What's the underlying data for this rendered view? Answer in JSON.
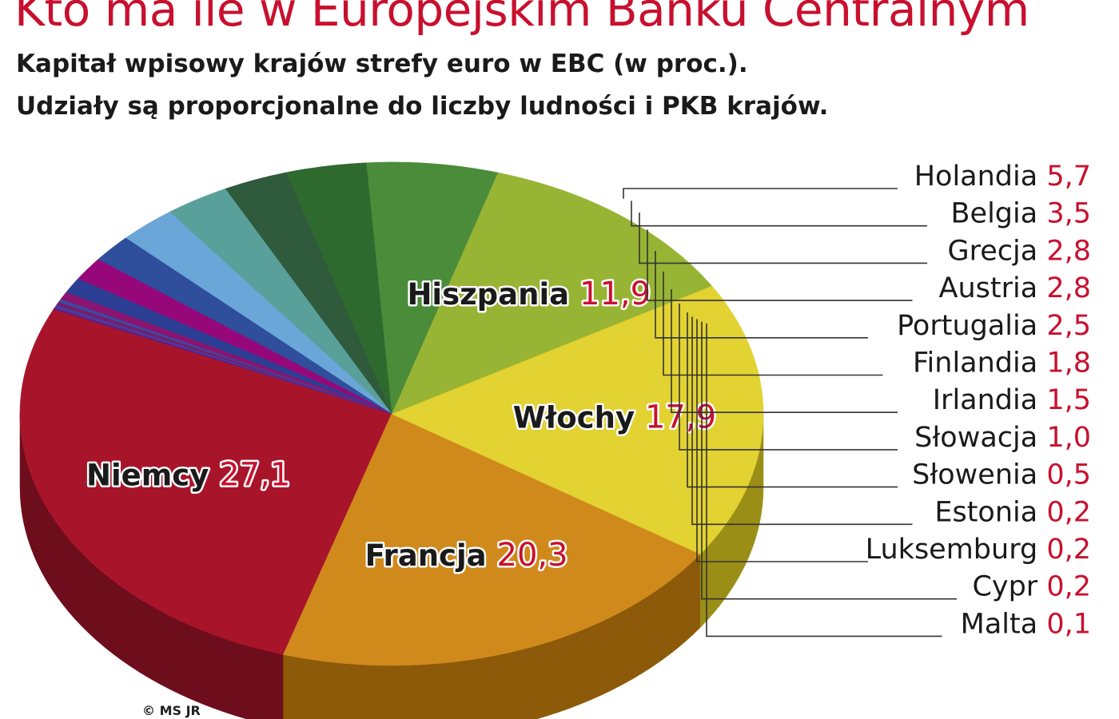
{
  "header": {
    "title": "Kto ma ile w Europejskim Banku Centralnym",
    "subtitle_line1": "Kapitał wpisowy krajów strefy euro w EBC (w proc.).",
    "subtitle_line2": "Udziały są proporcjonalne do liczby ludności i PKB krajów."
  },
  "credit": "© MS JR",
  "colors": {
    "value_text": "#c8102e",
    "label_text": "#1a1a1a"
  },
  "chart_data": {
    "type": "pie",
    "title": "Kto ma ile w Europejskim Banku Centralnym",
    "subtitle": "Kapitał wpisowy krajów strefy euro w EBC (w proc.). Udziały są proporcjonalne do liczby ludności i PKB krajów.",
    "style": "3d-exploded-pie",
    "slices": [
      {
        "label": "Niemcy",
        "value": 27.1,
        "value_text": "27,1",
        "color": "#a8152b",
        "side_color": "#6e0d1c",
        "placement": "inside"
      },
      {
        "label": "Francja",
        "value": 20.3,
        "value_text": "20,3",
        "color": "#d08a1c",
        "side_color": "#8c5a08",
        "placement": "inside"
      },
      {
        "label": "Włochy",
        "value": 17.9,
        "value_text": "17,9",
        "color": "#e2d232",
        "side_color": "#9a8e16",
        "placement": "inside"
      },
      {
        "label": "Hiszpania",
        "value": 11.9,
        "value_text": "11,9",
        "color": "#98b434",
        "side_color": "#5f7218",
        "placement": "inside"
      },
      {
        "label": "Holandia",
        "value": 5.7,
        "value_text": "5,7",
        "color": "#4b8c3a",
        "side_color": "#2c5a20",
        "placement": "callout"
      },
      {
        "label": "Belgia",
        "value": 3.5,
        "value_text": "3,5",
        "color": "#2e6a2e",
        "side_color": "#1a401a",
        "placement": "callout"
      },
      {
        "label": "Grecja",
        "value": 2.8,
        "value_text": "2,8",
        "color": "#2f5a3c",
        "side_color": "#1b3522",
        "placement": "callout"
      },
      {
        "label": "Austria",
        "value": 2.8,
        "value_text": "2,8",
        "color": "#5aa09a",
        "side_color": "#346460",
        "placement": "callout"
      },
      {
        "label": "Portugalia",
        "value": 2.5,
        "value_text": "2,5",
        "color": "#6aa6d8",
        "side_color": "#3f6f98",
        "placement": "callout"
      },
      {
        "label": "Finlandia",
        "value": 1.8,
        "value_text": "1,8",
        "color": "#2f4e9c",
        "side_color": "#1c2f60",
        "placement": "callout"
      },
      {
        "label": "Irlandia",
        "value": 1.5,
        "value_text": "1,5",
        "color": "#96087a",
        "side_color": "#5c044a",
        "placement": "callout"
      },
      {
        "label": "Słowacja",
        "value": 1.0,
        "value_text": "1,0",
        "color": "#2c3f94",
        "side_color": "#1a265a",
        "placement": "callout"
      },
      {
        "label": "Słowenia",
        "value": 0.5,
        "value_text": "0,5",
        "color": "#8a1470",
        "side_color": "#540c44",
        "placement": "callout"
      },
      {
        "label": "Estonia",
        "value": 0.2,
        "value_text": "0,2",
        "color": "#3a4aa0",
        "side_color": "#222c60",
        "placement": "callout"
      },
      {
        "label": "Luksemburg",
        "value": 0.2,
        "value_text": "0,2",
        "color": "#7a1a6a",
        "side_color": "#4a1040",
        "placement": "callout"
      },
      {
        "label": "Cypr",
        "value": 0.2,
        "value_text": "0,2",
        "color": "#4a3a9a",
        "side_color": "#2c225c",
        "placement": "callout"
      },
      {
        "label": "Malta",
        "value": 0.1,
        "value_text": "0,1",
        "color": "#6a1a7a",
        "side_color": "#3e1048",
        "placement": "callout"
      }
    ]
  }
}
